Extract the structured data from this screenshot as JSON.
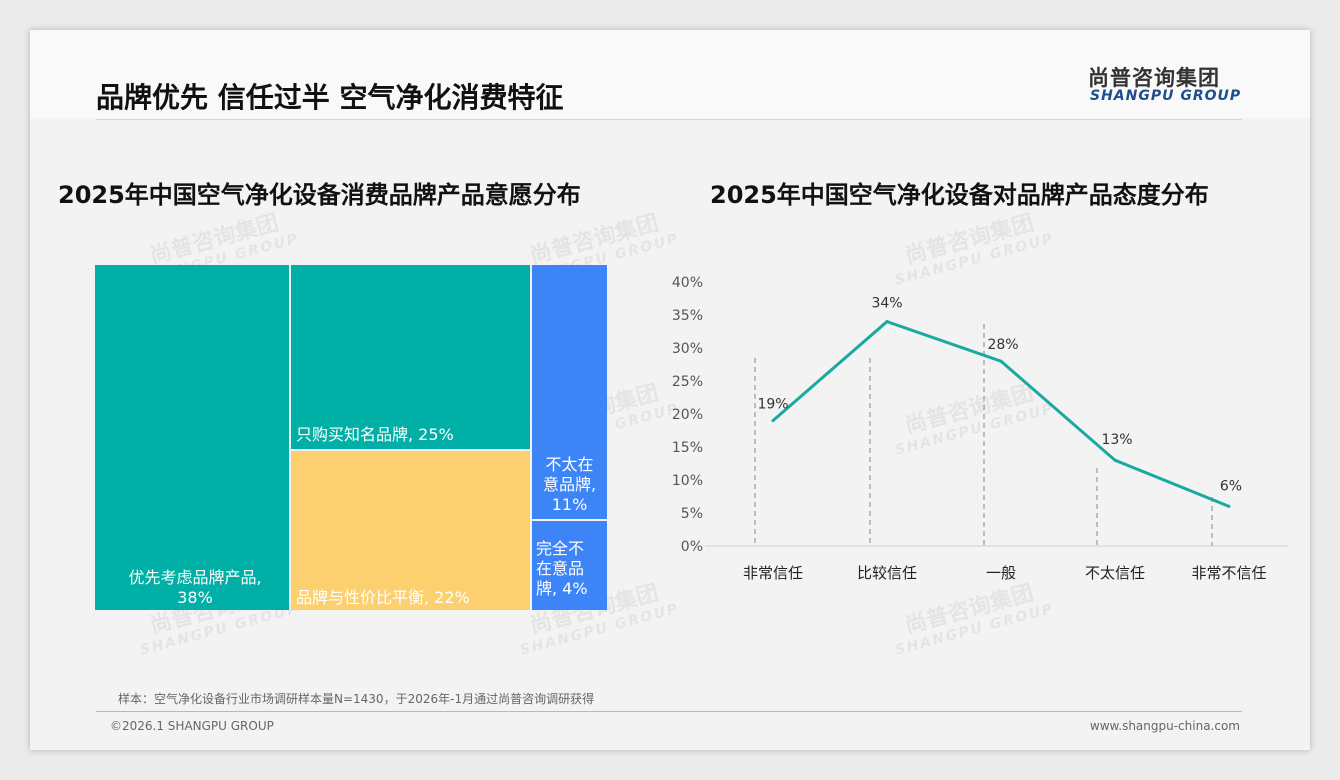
{
  "header": {
    "title": "品牌优先 信任过半 空气净化消费特征",
    "logo_cn": "尚普咨询集团",
    "logo_en": "SHANGPU GROUP"
  },
  "watermark": {
    "cn": "尚普咨询集团",
    "en": "SHANGPU GROUP"
  },
  "chart_data": [
    {
      "type": "treemap",
      "title": "2025年中国空气净化设备消费品牌产品意愿分布",
      "items": [
        {
          "label": "优先考虑品牌产品",
          "value": 38,
          "text": "优先考虑品牌产品,",
          "pct": "38%",
          "color": "#00b0a7"
        },
        {
          "label": "只购买知名品牌",
          "value": 25,
          "text": "只购买知名品牌, 25%",
          "color": "#00b0a7"
        },
        {
          "label": "品牌与性价比平衡",
          "value": 22,
          "text": "品牌与性价比平衡, 22%",
          "color": "#fdd06f"
        },
        {
          "label": "不太在意品牌",
          "value": 11,
          "text": "不太在意品牌, 11%",
          "lines": [
            "不太在",
            "意品牌,",
            "11%"
          ],
          "color": "#3d85f7"
        },
        {
          "label": "完全不在意品牌",
          "value": 4,
          "text": "完全不在意品牌, 4%",
          "lines": [
            "完全不",
            "在意品",
            "牌, 4%"
          ],
          "color": "#3d85f7"
        }
      ]
    },
    {
      "type": "line",
      "title": "2025年中国空气净化设备对品牌产品态度分布",
      "categories": [
        "非常信任",
        "比较信任",
        "一般",
        "不太信任",
        "非常不信任"
      ],
      "values": [
        19,
        34,
        28,
        13,
        6
      ],
      "labels": [
        "19%",
        "34%",
        "28%",
        "13%",
        "6%"
      ],
      "yticks": [
        "0%",
        "5%",
        "10%",
        "15%",
        "20%",
        "25%",
        "30%",
        "35%",
        "40%"
      ],
      "ylim": [
        0,
        40
      ],
      "color": "#1aa9a0",
      "grid": false
    }
  ],
  "footer": {
    "note": "样本：空气净化设备行业市场调研样本量N=1430，于2026年-1月通过尚普咨询调研获得",
    "copyright": "©2026.1 SHANGPU GROUP",
    "website": "www.shangpu-china.com"
  }
}
